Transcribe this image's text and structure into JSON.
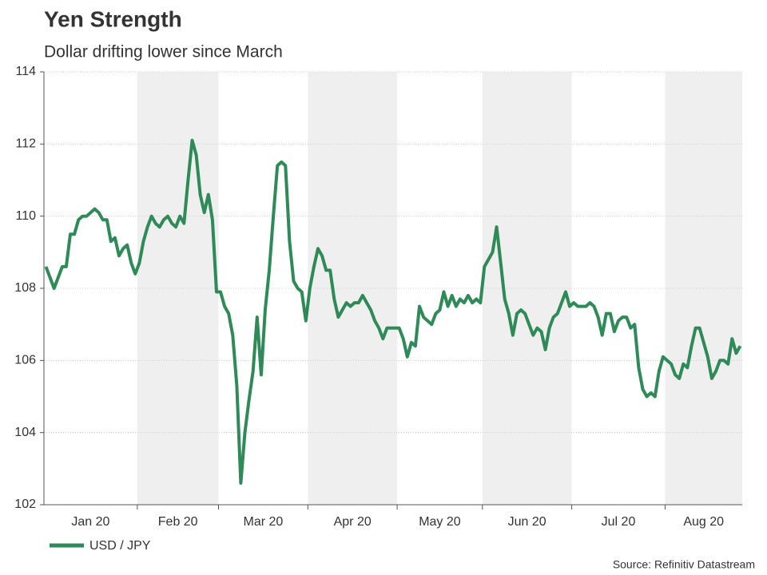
{
  "chart_data": {
    "type": "line",
    "title": "Yen Strength",
    "subtitle": "Dollar drifting lower since March",
    "source": "Source: Refinitiv Datastream",
    "categories": [
      "Jan 20",
      "Feb 20",
      "Mar 20",
      "Apr 20",
      "May 20",
      "Jun 20",
      "Jul 20",
      "Aug 20"
    ],
    "band_color": "#efefef",
    "series": [
      {
        "name": "USD / JPY",
        "color": "#2e8b57",
        "values": [
          [
            108.6,
            108.3,
            108.0,
            108.3,
            108.6,
            108.6,
            109.5,
            109.5,
            109.9,
            110.0,
            110.0,
            110.1,
            110.2,
            110.1,
            109.9,
            109.9,
            109.3,
            109.4,
            108.9,
            109.1,
            109.2,
            108.7,
            108.4
          ],
          [
            108.7,
            109.3,
            109.7,
            110.0,
            109.8,
            109.7,
            109.9,
            110.0,
            109.8,
            109.7,
            110.0,
            109.8,
            111.0,
            112.1,
            111.7,
            110.6,
            110.1,
            110.6,
            109.9,
            107.9
          ],
          [
            107.9,
            107.5,
            107.3,
            106.7,
            105.3,
            102.6,
            104.0,
            104.9,
            105.7,
            107.2,
            105.6,
            107.4,
            108.5,
            110.0,
            111.4,
            111.5,
            111.4,
            109.3,
            108.2,
            108.0,
            107.9,
            107.1
          ],
          [
            108.0,
            108.6,
            109.1,
            108.9,
            108.5,
            108.5,
            107.7,
            107.2,
            107.4,
            107.6,
            107.5,
            107.6,
            107.6,
            107.8,
            107.6,
            107.4,
            107.1,
            106.9,
            106.6,
            106.9,
            106.9,
            106.9
          ],
          [
            106.9,
            106.6,
            106.1,
            106.5,
            106.4,
            107.5,
            107.2,
            107.1,
            107.0,
            107.3,
            107.4,
            107.9,
            107.5,
            107.8,
            107.5,
            107.7,
            107.6,
            107.8,
            107.6,
            107.7,
            107.6
          ],
          [
            108.6,
            108.8,
            109.0,
            109.7,
            108.7,
            107.7,
            107.3,
            106.7,
            107.3,
            107.4,
            107.3,
            107.0,
            106.7,
            106.9,
            106.8,
            106.3,
            106.9,
            107.2,
            107.3,
            107.6,
            107.9,
            107.5
          ],
          [
            107.6,
            107.5,
            107.5,
            107.5,
            107.6,
            107.5,
            107.2,
            106.7,
            107.3,
            107.3,
            106.8,
            107.1,
            107.2,
            107.2,
            106.9,
            107.0,
            105.8,
            105.2,
            105.0,
            105.1,
            105.0,
            105.7,
            106.1
          ],
          [
            106.0,
            105.9,
            105.6,
            105.5,
            105.9,
            105.8,
            106.4,
            106.9,
            106.9,
            106.5,
            106.1,
            105.5,
            105.7,
            106.0,
            106.0,
            105.9,
            106.6,
            106.2,
            106.4
          ]
        ]
      }
    ],
    "ylim": [
      102,
      114
    ],
    "yticks": [
      102,
      104,
      106,
      108,
      110,
      112,
      114
    ],
    "grid": true
  }
}
